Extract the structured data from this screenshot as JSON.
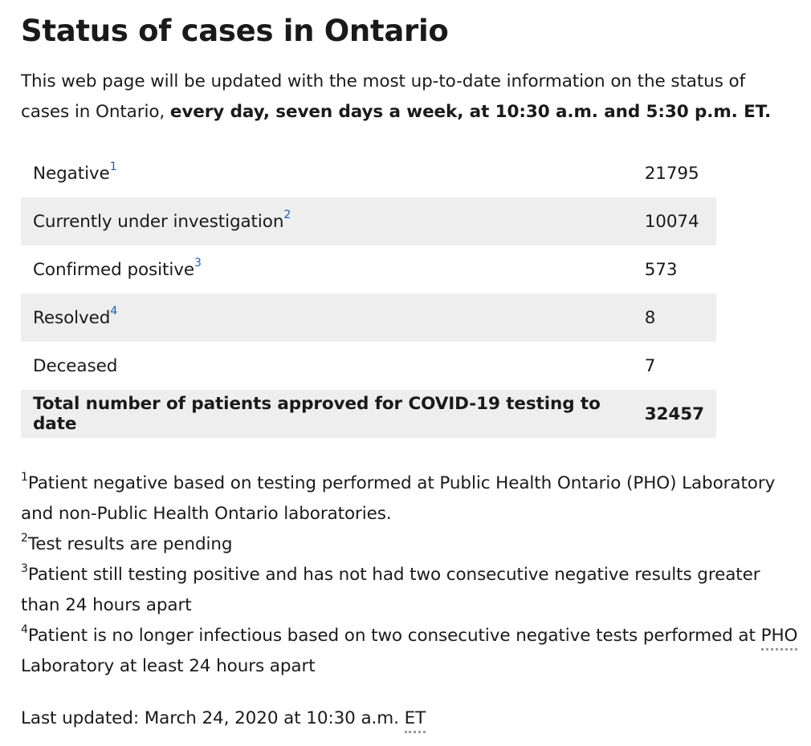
{
  "page": {
    "title": "Status of cases in Ontario",
    "intro_text": "This web page will be updated with the most up-to-date information on the status of cases in Ontario, ",
    "intro_bold": "every day, seven days a week, at 10:30 a.m. and 5:30 p.m. ET."
  },
  "table": {
    "rows": [
      {
        "label": "Negative",
        "note": "1",
        "value": "21795"
      },
      {
        "label": "Currently under investigation",
        "note": "2",
        "value": "10074"
      },
      {
        "label": "Confirmed positive",
        "note": "3",
        "value": "573"
      },
      {
        "label": "Resolved",
        "note": "4",
        "value": "8"
      },
      {
        "label": "Deceased",
        "note": "",
        "value": "7"
      }
    ],
    "total": {
      "label": "Total number of patients approved for COVID-19 testing to date",
      "value": "32457"
    }
  },
  "footnotes": [
    {
      "num": "1",
      "text": "Patient negative based on testing performed at Public Health Ontario (PHO) Laboratory and non-Public Health Ontario laboratories."
    },
    {
      "num": "2",
      "text": "Test results are pending"
    },
    {
      "num": "3",
      "text": "Patient still testing positive and has not had two consecutive negative results greater than 24 hours apart"
    },
    {
      "num": "4",
      "text_before": "Patient is no longer infectious based on two consecutive negative tests performed at ",
      "abbr": "PHO",
      "text_after": " Laboratory at least 24 hours apart"
    }
  ],
  "last_updated": {
    "text": "Last updated: March 24, 2020 at 10:30 a.m. ",
    "abbr": "ET"
  },
  "colors": {
    "text": "#1a1a1a",
    "row_shade": "#eeeeee",
    "footnote_link": "#1a5fb4"
  }
}
